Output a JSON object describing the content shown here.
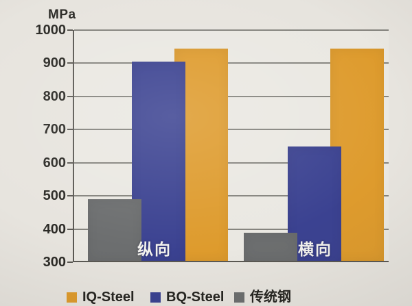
{
  "page": {
    "background_color": "#e7e4de"
  },
  "unit_label": "MPa",
  "chart_data": {
    "type": "bar",
    "title": "",
    "unit_label": "MPa",
    "xlabel": "",
    "ylabel": "MPa",
    "ylim": [
      300,
      1000
    ],
    "yticks": [
      300,
      400,
      500,
      600,
      700,
      800,
      900,
      1000
    ],
    "grid": true,
    "legend_position": "bottom",
    "categories": [
      "纵向",
      "横向"
    ],
    "category_slugs": [
      "longitudinal",
      "transverse"
    ],
    "series": [
      {
        "name": "IQ-Steel",
        "slug": "iq-steel",
        "color": "#de9b2d",
        "values": [
          940,
          940
        ]
      },
      {
        "name": "BQ-Steel",
        "slug": "bq-steel",
        "color": "#3b4291",
        "values": [
          900,
          645
        ]
      },
      {
        "name": "传统钢",
        "slug": "traditional-steel",
        "color": "#6c6e6f",
        "values": [
          485,
          385
        ]
      }
    ],
    "layering_note": "shorter bars drawn in front, cascaded overlap left-to-front",
    "bar_label_color": "#f3f2ee",
    "gridline_color": "#84837d",
    "axis_color": "#5a5853",
    "text_color": "#2b2a26"
  }
}
